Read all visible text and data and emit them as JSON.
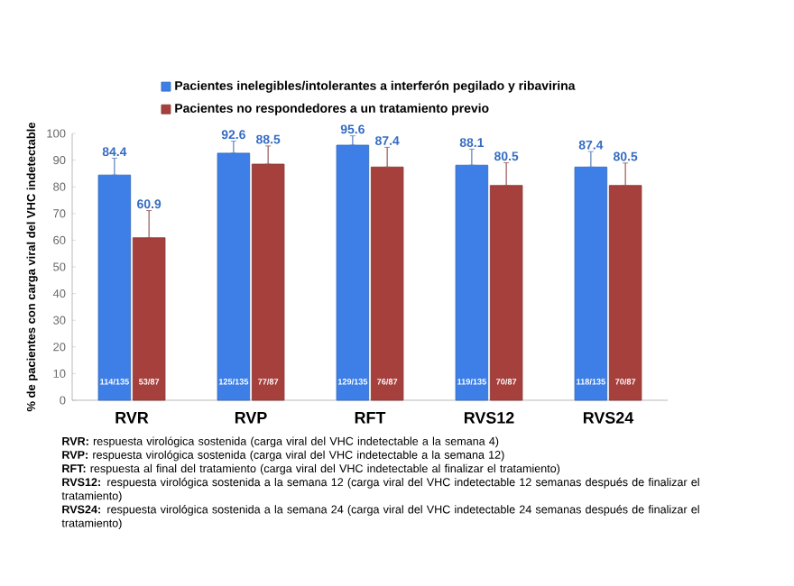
{
  "chart_data": {
    "type": "bar",
    "ylabel": "% de pacientes con carga viral del VHC indetectable",
    "categories": [
      "RVR",
      "RVP",
      "RFT",
      "RVS12",
      "RVS24"
    ],
    "series": [
      {
        "name": "Pacientes inelegibles/intolerantes a interferón pegilado y ribavirina",
        "color": "#3d7fe6",
        "values": [
          84.4,
          92.6,
          95.6,
          88.1,
          87.4
        ],
        "errors": [
          [
            84.4,
            90.7
          ],
          [
            92.6,
            97.1
          ],
          [
            95.6,
            99.1
          ],
          [
            88.1,
            94.1
          ],
          [
            87.4,
            93.2
          ]
        ]
      },
      {
        "name": "Pacientes no respondedores a un tratamiento previo",
        "color": "#a5403d",
        "values": [
          60.9,
          88.5,
          87.4,
          80.5,
          80.5
        ],
        "errors": [
          [
            60.9,
            71.1
          ],
          [
            88.5,
            95.3
          ],
          [
            87.4,
            94.8
          ],
          [
            80.5,
            89.0
          ],
          [
            80.5,
            88.9
          ]
        ]
      }
    ],
    "data_labels": true,
    "legend": "top",
    "ylim": [
      0,
      100
    ],
    "yticks": [
      0,
      10,
      20,
      30,
      40,
      50,
      60,
      70,
      80,
      90,
      100
    ],
    "annotations": [
      {
        "text": "114/135",
        "x": "RVR",
        "y": 7
      },
      {
        "text": "53/87",
        "x": "RVR",
        "y": 7
      },
      {
        "text": "125/135",
        "x": "RVP",
        "y": 7
      },
      {
        "text": "77/87",
        "x": "RVP",
        "y": 7
      },
      {
        "text": "129/135",
        "x": "RFT",
        "y": 7
      },
      {
        "text": "76/87",
        "x": "RFT",
        "y": 7
      },
      {
        "text": "119/135",
        "x": "RVS12",
        "y": 7
      },
      {
        "text": "70/87",
        "x": "RVS12",
        "y": 7
      },
      {
        "text": "118/135",
        "x": "RVS24",
        "y": 7
      },
      {
        "text": "70/87",
        "x": "RVS24",
        "y": 7
      },
      "**RVR:** respuesta virológica sostenida (carga viral del VHC indetectable a la semana 4)",
      "**RVP:** respuesta virológica sostenida (carga viral del VHC indetectable a la semana 12)",
      "**RFT:** respuesta al final del tratamiento (carga viral del VHC indetectable al finalizar el tratamiento)",
      "**RVS12:** respuesta virológica sostenida a la semana 12 (carga viral del VHC indetectable 12 semanas después de finalizar el tratamiento)",
      "**RVS24:** respuesta virológica sostenida a la semana 24 (carga viral del VHC indetectable 24 semanas después de finalizar el tratamiento)"
    ]
  }
}
